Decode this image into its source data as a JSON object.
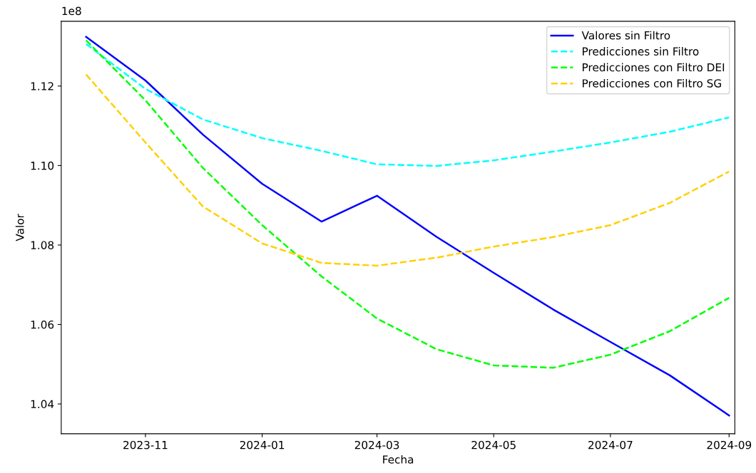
{
  "chart_data": {
    "type": "line",
    "xlabel": "Fecha",
    "ylabel": "Valor",
    "annotations": [
      "1e8"
    ],
    "x": [
      "2023-10",
      "2023-11",
      "2023-12",
      "2024-01",
      "2024-02",
      "2024-03",
      "2024-04",
      "2024-05",
      "2024-06",
      "2024-07",
      "2024-08",
      "2024-09"
    ],
    "series": [
      {
        "name": "Valores sin Filtro",
        "color": "#0000ff",
        "line_style": "solid",
        "values": [
          1.1324,
          1.1214,
          1.1078,
          1.0954,
          1.0859,
          1.0924,
          1.0821,
          1.073,
          1.0638,
          1.0556,
          1.0472,
          1.0371
        ]
      },
      {
        "name": "Predicciones sin Filtro",
        "color": "#00ffff",
        "line_style": "dashed",
        "values": [
          1.1306,
          1.1193,
          1.1116,
          1.1069,
          1.1037,
          1.1003,
          1.0999,
          1.1013,
          1.1035,
          1.1058,
          1.1085,
          1.1121
        ]
      },
      {
        "name": "Predicciones con Filtro DEI",
        "color": "#00ff00",
        "line_style": "dashed",
        "values": [
          1.1315,
          1.1164,
          1.0994,
          1.085,
          1.0721,
          1.0615,
          1.0538,
          1.0497,
          1.0491,
          1.0524,
          1.0583,
          1.0667
        ]
      },
      {
        "name": "Predicciones con Filtro SG",
        "color": "#ffd000",
        "line_style": "dashed",
        "values": [
          1.1229,
          1.1058,
          1.0897,
          1.0804,
          1.0755,
          1.0748,
          1.0768,
          1.0796,
          1.082,
          1.085,
          1.0906,
          1.0985
        ]
      }
    ],
    "xlim": [
      "2023-09-18",
      "2024-09-04"
    ],
    "xticks": [
      "2023-11",
      "2024-01",
      "2024-03",
      "2024-05",
      "2024-07",
      "2024-09"
    ],
    "ylim": [
      1.0325,
      1.1363
    ],
    "yticks": [
      1.04,
      1.06,
      1.08,
      {
        "value": 1.1,
        "label": "1.10"
      },
      1.12
    ],
    "legend": "top right",
    "grid": false,
    "marker": "none"
  }
}
